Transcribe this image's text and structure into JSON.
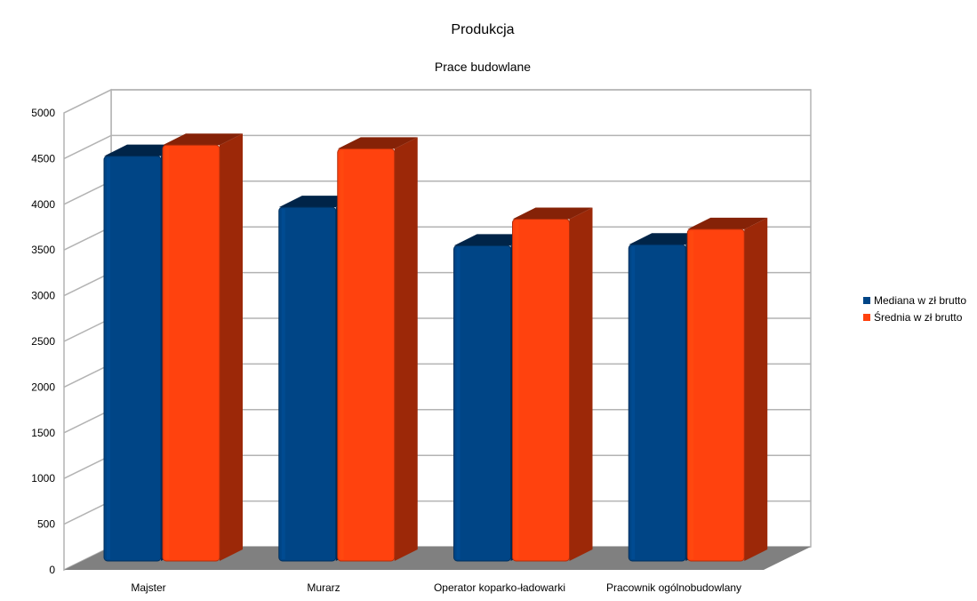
{
  "chart_data": {
    "type": "bar",
    "title": "Produkcja",
    "subtitle": "Prace budowlane",
    "xlabel": "",
    "ylabel": "",
    "categories": [
      "Majster",
      "Murarz",
      "Operator koparko-ładowarki",
      "Pracownik ogólnobudowlany"
    ],
    "series": [
      {
        "name": "Mediana w zł brutto",
        "color": "#004586",
        "sideColor": "#002a55",
        "values": [
          4430,
          3870,
          3450,
          3460
        ]
      },
      {
        "name": "Średnia w zł brutto",
        "color": "#ff420e",
        "sideColor": "#9c2808",
        "values": [
          4550,
          4510,
          3740,
          3630
        ]
      }
    ],
    "ylim": [
      0,
      5000
    ],
    "yticks": [
      0,
      500,
      1000,
      1500,
      2000,
      2500,
      3000,
      3500,
      4000,
      4500,
      5000
    ],
    "grid": true,
    "three_d": true,
    "legend_position": "right",
    "floor_color": "#808080",
    "grid_color": "#b3b3b3"
  }
}
